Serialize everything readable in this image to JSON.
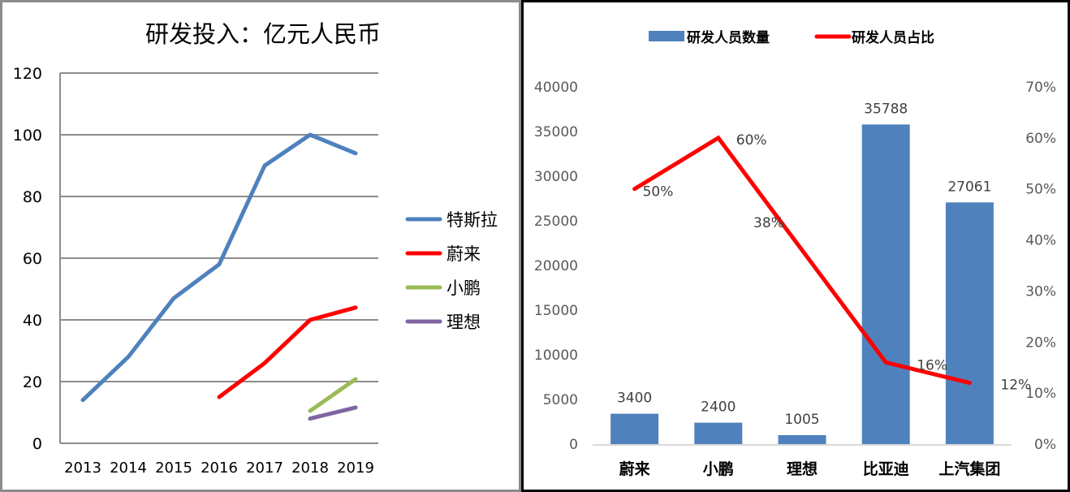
{
  "chart_data": [
    {
      "type": "line",
      "title": "研发投入：亿元人民币",
      "xlabel": "",
      "ylabel": "",
      "categories": [
        "2013",
        "2014",
        "2015",
        "2016",
        "2017",
        "2018",
        "2019"
      ],
      "ylim": [
        0,
        120
      ],
      "yticks": [
        "0",
        "20",
        "40",
        "60",
        "80",
        "100",
        "120"
      ],
      "ytick_values": [
        0,
        20,
        40,
        60,
        80,
        100,
        120
      ],
      "grid": true,
      "legend_position": "right",
      "series": [
        {
          "name": "特斯拉",
          "color": "#4f81bd",
          "values": [
            14,
            28,
            47,
            58,
            90,
            100,
            94
          ]
        },
        {
          "name": "蔚来",
          "color": "#ff0000",
          "values": [
            null,
            null,
            null,
            15,
            26,
            40,
            44
          ]
        },
        {
          "name": "小鹏",
          "color": "#9bbb59",
          "values": [
            null,
            null,
            null,
            null,
            null,
            10.5,
            20.8
          ]
        },
        {
          "name": "理想",
          "color": "#8064a2",
          "values": [
            null,
            null,
            null,
            null,
            null,
            8,
            11.6
          ]
        }
      ]
    },
    {
      "type": "bar",
      "title": "",
      "categories": [
        "蔚来",
        "小鹏",
        "理想",
        "比亚迪",
        "上汽集团"
      ],
      "legend_position": "top",
      "y_left": {
        "ylim": [
          0,
          40000
        ],
        "ticks": [
          "0",
          "5000",
          "10000",
          "15000",
          "20000",
          "25000",
          "30000",
          "35000",
          "40000"
        ],
        "tick_values": [
          0,
          5000,
          10000,
          15000,
          20000,
          25000,
          30000,
          35000,
          40000
        ]
      },
      "y_right": {
        "ylim": [
          0,
          0.7
        ],
        "ticks": [
          "0%",
          "10%",
          "20%",
          "30%",
          "40%",
          "50%",
          "60%",
          "70%"
        ],
        "tick_values": [
          0,
          0.1,
          0.2,
          0.3,
          0.4,
          0.5,
          0.6,
          0.7
        ]
      },
      "series": [
        {
          "name": "研发人员数量",
          "kind": "bar",
          "axis": "left",
          "color": "#4f81bd",
          "values": [
            3400,
            2400,
            1005,
            35788,
            27061
          ],
          "labels": [
            "3400",
            "2400",
            "1005",
            "35788",
            "27061"
          ]
        },
        {
          "name": "研发人员占比",
          "kind": "line",
          "axis": "right",
          "color": "#ff0000",
          "values": [
            0.5,
            0.6,
            0.38,
            0.16,
            0.12
          ],
          "labels": [
            "50%",
            "60%",
            "38%",
            "16%",
            "12%"
          ]
        }
      ]
    }
  ]
}
